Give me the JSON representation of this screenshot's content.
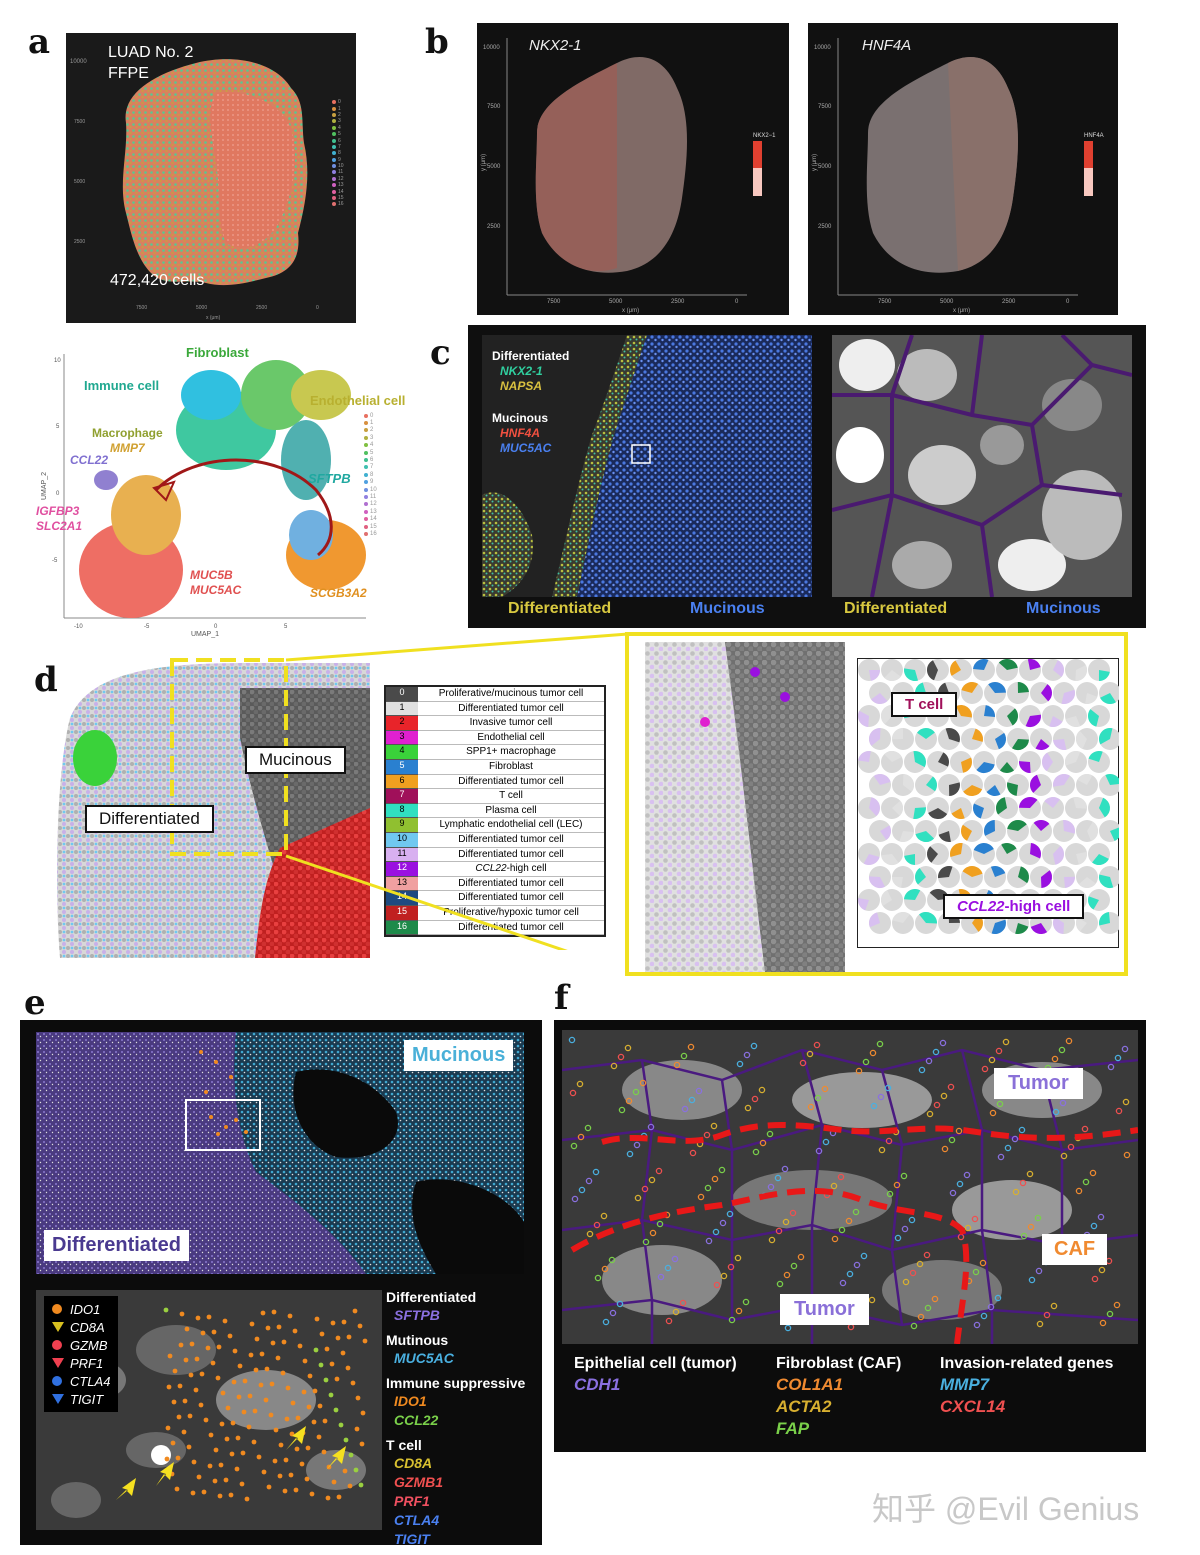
{
  "panels": {
    "a": {
      "letter": "a",
      "title_line1": "LUAD No. 2",
      "title_line2": "FFPE",
      "cell_count": "472,420 cells",
      "x_label": "x (μm)",
      "y_label": "y (μm)",
      "cluster_ids": [
        "0",
        "1",
        "2",
        "3",
        "4",
        "5",
        "6",
        "7",
        "8",
        "9",
        "10",
        "11",
        "12",
        "13",
        "14",
        "15",
        "16"
      ],
      "umap": {
        "x_label": "UMAP_1",
        "y_label": "UMAP_2",
        "x_ticks": [
          "-10",
          "-5",
          "0",
          "5"
        ],
        "y_ticks": [
          "10",
          "5",
          "0",
          "-5"
        ],
        "labels": {
          "fibroblast": "Fibroblast",
          "immune": "Immune cell",
          "endothelial": "Endothelial cell",
          "macrophage": "Macrophage",
          "mmp7": "MMP7",
          "ccl22": "CCL22",
          "sftpb": "SFTPB",
          "igfbp3": "IGFBP3",
          "slc2a1": "SLC2A1",
          "muc5b": "MUC5B",
          "muc5ac": "MUC5AC",
          "scgb3a2": "SCGB3A2"
        }
      }
    },
    "b": {
      "letter": "b",
      "left_title": "NKX2-1",
      "right_title": "HNF4A",
      "left_scale_label": "NKX2−1",
      "right_scale_label": "HNF4A",
      "x_label": "x (μm)",
      "y_label": "y (μm)",
      "x_ticks": [
        "7500",
        "5000",
        "2500",
        "0"
      ],
      "y_ticks": [
        "10000",
        "7500",
        "5000",
        "2500"
      ]
    },
    "c": {
      "letter": "c",
      "differentiated_header": "Differentiated",
      "gene1": "NKX2-1",
      "gene2": "NAPSA",
      "mucinous_header": "Mucinous",
      "gene3": "HNF4A",
      "gene4": "MUC5AC",
      "bottom_left": "Differentiated",
      "bottom_right": "Mucinous",
      "bottom_left2": "Differentiated",
      "bottom_right2": "Mucinous"
    },
    "d": {
      "letter": "d",
      "mucinous_tag": "Mucinous",
      "differentiated_tag": "Differentiated",
      "tcell_tag": "T cell",
      "ccl22_tag_gene": "CCL22",
      "ccl22_tag_rest": "-high cell",
      "legend": [
        {
          "id": "0",
          "name": "Proliferative/mucinous tumor cell",
          "color": "#4a4a4a"
        },
        {
          "id": "1",
          "name": "Differentiated tumor cell",
          "color": "#e0e0e0"
        },
        {
          "id": "2",
          "name": "Invasive tumor cell",
          "color": "#e8242a"
        },
        {
          "id": "3",
          "name": "Endothelial cell",
          "color": "#e020d0"
        },
        {
          "id": "4",
          "name": "SPP1+ macrophage",
          "color": "#3ad23a"
        },
        {
          "id": "5",
          "name": "Fibroblast",
          "color": "#2a80d0"
        },
        {
          "id": "6",
          "name": "Differentiated tumor cell",
          "color": "#f0a020"
        },
        {
          "id": "7",
          "name": "T cell",
          "color": "#a0105a"
        },
        {
          "id": "8",
          "name": "Plasma cell",
          "color": "#30e0c0"
        },
        {
          "id": "9",
          "name": "Lymphatic endothelial cell (LEC)",
          "color": "#90c030"
        },
        {
          "id": "10",
          "name": "Differentiated tumor cell",
          "color": "#70c8f0"
        },
        {
          "id": "11",
          "name": "Differentiated tumor cell",
          "color": "#d8b0f0"
        },
        {
          "id": "12",
          "name": "CCL22-high cell",
          "color": "#9a10e0"
        },
        {
          "id": "13",
          "name": "Differentiated tumor cell",
          "color": "#f0a0a0"
        },
        {
          "id": "14",
          "name": "Differentiated tumor cell",
          "color": "#1e4a80"
        },
        {
          "id": "15",
          "name": "Proliferative/hypoxic tumor cell",
          "color": "#c02020"
        },
        {
          "id": "16",
          "name": "Differentiated tumor cell",
          "color": "#1e8a4a"
        }
      ]
    },
    "e": {
      "letter": "e",
      "mucinous_tag": "Mucinous",
      "differentiated_tag": "Differentiated",
      "markers": [
        {
          "name": "IDO1",
          "color": "#f08a20",
          "shape": "circle"
        },
        {
          "name": "CD8A",
          "color": "#d8c020",
          "shape": "triangle-down"
        },
        {
          "name": "GZMB",
          "color": "#f04050",
          "shape": "circle"
        },
        {
          "name": "PRF1",
          "color": "#f04050",
          "shape": "triangle-down"
        },
        {
          "name": "CTLA4",
          "color": "#3070e0",
          "shape": "circle"
        },
        {
          "name": "TIGIT",
          "color": "#3070e0",
          "shape": "triangle-down"
        }
      ],
      "groups": [
        {
          "header": "Differentiated",
          "genes": [
            {
              "name": "SFTPB",
              "color": "#8a70e0"
            }
          ]
        },
        {
          "header": "Mutinous",
          "genes": [
            {
              "name": "MUC5AC",
              "color": "#4ab0e0"
            }
          ]
        },
        {
          "header": "Immune suppressive",
          "genes": [
            {
              "name": "IDO1",
              "color": "#f08a20"
            },
            {
              "name": "CCL22",
              "color": "#7ad04a"
            }
          ]
        },
        {
          "header": "T cell",
          "genes": [
            {
              "name": "CD8A",
              "color": "#d8c030"
            },
            {
              "name": "GZMB1",
              "color": "#f05050"
            },
            {
              "name": "PRF1",
              "color": "#f05060"
            },
            {
              "name": "CTLA4",
              "color": "#4a80f0"
            },
            {
              "name": "TIGIT",
              "color": "#4a80f0"
            }
          ]
        }
      ]
    },
    "f": {
      "letter": "f",
      "tumor_top": "Tumor",
      "caf": "CAF",
      "tumor_bottom": "Tumor",
      "groups": [
        {
          "header": "Epithelial cell (tumor)",
          "genes": [
            {
              "name": "CDH1",
              "color": "#8a70e0"
            }
          ]
        },
        {
          "header": "Fibroblast (CAF)",
          "genes": [
            {
              "name": "COL1A1",
              "color": "#f08a30"
            },
            {
              "name": "ACTA2",
              "color": "#d8b030"
            },
            {
              "name": "FAP",
              "color": "#7ad04a"
            }
          ]
        },
        {
          "header": "Invasion-related genes",
          "genes": [
            {
              "name": "MMP7",
              "color": "#4ab0e0"
            },
            {
              "name": "CXCL14",
              "color": "#f05050"
            }
          ]
        }
      ]
    }
  },
  "watermark": "知乎 @Evil Genius"
}
